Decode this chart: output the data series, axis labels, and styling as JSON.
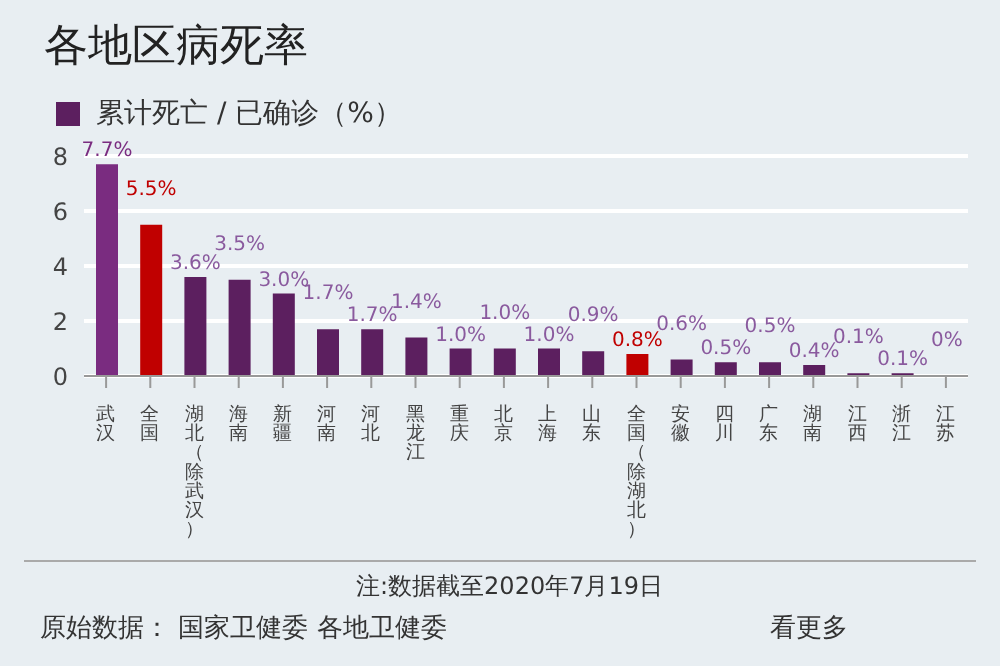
{
  "chart_data": {
    "type": "bar",
    "title": "各地区病死率",
    "categories": [
      "武汉",
      "全国",
      "湖北（除武汉）",
      "海南",
      "新疆",
      "河南",
      "河北",
      "黑龙江",
      "重庆",
      "北京",
      "上海",
      "山东",
      "全国（除湖北）",
      "安徽",
      "四川",
      "广东",
      "湖南",
      "江西",
      "浙江",
      "江苏"
    ],
    "series": [
      {
        "name": "累计死亡 / 已确诊（%）",
        "color": "#5c1f5f",
        "values": [
          7.7,
          5.5,
          3.6,
          3.5,
          3.0,
          1.7,
          1.7,
          1.4,
          1.0,
          1.0,
          1.0,
          0.9,
          0.8,
          0.6,
          0.5,
          0.5,
          0.4,
          0.1,
          0.1,
          0
        ],
        "colors": [
          "#7a2c80",
          "#c00000",
          "#5c1f5f",
          "#5c1f5f",
          "#5c1f5f",
          "#5c1f5f",
          "#5c1f5f",
          "#5c1f5f",
          "#5c1f5f",
          "#5c1f5f",
          "#5c1f5f",
          "#5c1f5f",
          "#c00000",
          "#5c1f5f",
          "#5c1f5f",
          "#5c1f5f",
          "#5c1f5f",
          "#5c1f5f",
          "#5c1f5f",
          "#5c1f5f"
        ],
        "value_labels": [
          "7.7%",
          "5.5%",
          "3.6%",
          "3.5%",
          "3.0%",
          "1.7%",
          "1.7%",
          "1.4%",
          "1.0%",
          "1.0%",
          "1.0%",
          "0.9%",
          "0.8%",
          "0.6%",
          "0.5%",
          "0.5%",
          "0.4%",
          "0.1%",
          "0.1%",
          "0%"
        ]
      }
    ],
    "ylim": [
      0,
      8
    ],
    "yticks": [
      0,
      2,
      4,
      6,
      8
    ],
    "grid": "y",
    "legend": "top left",
    "annotations": [
      "注:数据截至2020年7月19日",
      "原始数据： 国家卫健委 各地卫健委",
      "看更多"
    ]
  }
}
